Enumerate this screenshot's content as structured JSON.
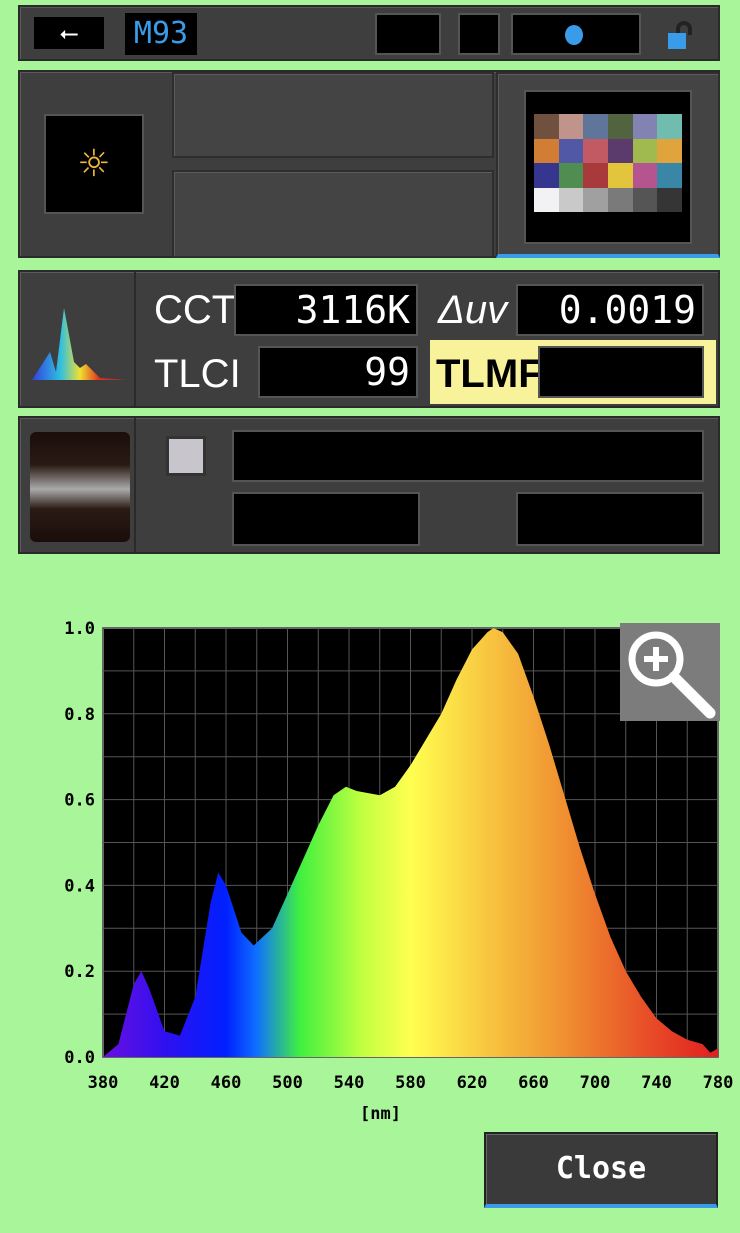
{
  "status_bar": {
    "usb_icon": "usb-icon",
    "memory_label": "M93",
    "indicator_icon": "blue-dot-icon",
    "lock_icon": "unlocked-padlock-icon",
    "accent": "#3a9be8"
  },
  "mode_panel": {
    "light_icon": "sun-icon",
    "chart_icon": "color-checker-icon",
    "color_checker": [
      "#70503f",
      "#c0948a",
      "#5f7599",
      "#51633f",
      "#8283b3",
      "#70bcae",
      "#d27d35",
      "#5159a6",
      "#c15a62",
      "#5a3b6b",
      "#a1ba50",
      "#e1a33c",
      "#37368f",
      "#4f8d50",
      "#a83a3c",
      "#e3c43d",
      "#b5558f",
      "#3a86a6",
      "#f2f2f5",
      "#c9c9c9",
      "#a0a0a0",
      "#7a7a7a",
      "#555555",
      "#353535"
    ]
  },
  "measure": {
    "spectrum_icon": "spectrum-icon",
    "cct_label": "CCT",
    "cct_value": "3116K",
    "duv_label": "Δuv",
    "duv_value": "0.0019",
    "tlci_label": "TLCI",
    "tlci_value": "99",
    "tlmf_label": "TLMF",
    "tlmf_value": "",
    "tlmf_bg": "#f8f39a"
  },
  "filter_panel": {
    "dial_icon": "dial-icon"
  },
  "chart_data": {
    "type": "area",
    "xlabel": "[nm]",
    "ylabel": "",
    "xlim": [
      380,
      780
    ],
    "ylim": [
      0,
      1.0
    ],
    "grid": true,
    "xticks": [
      380,
      420,
      460,
      500,
      540,
      580,
      620,
      660,
      700,
      740,
      780
    ],
    "yticks": [
      "0.0",
      "0.2",
      "0.4",
      "0.6",
      "0.8",
      "1.0"
    ],
    "x": [
      380,
      390,
      400,
      405,
      410,
      420,
      430,
      440,
      450,
      455,
      460,
      470,
      478,
      490,
      500,
      510,
      520,
      530,
      538,
      545,
      560,
      570,
      580,
      590,
      600,
      610,
      620,
      630,
      634,
      640,
      650,
      660,
      670,
      680,
      690,
      700,
      710,
      720,
      730,
      740,
      750,
      760,
      770,
      775,
      780
    ],
    "y": [
      0,
      0.03,
      0.17,
      0.2,
      0.16,
      0.06,
      0.05,
      0.14,
      0.36,
      0.43,
      0.4,
      0.29,
      0.26,
      0.3,
      0.38,
      0.46,
      0.54,
      0.61,
      0.63,
      0.62,
      0.61,
      0.63,
      0.68,
      0.74,
      0.8,
      0.88,
      0.95,
      0.99,
      1.0,
      0.99,
      0.94,
      0.84,
      0.73,
      0.61,
      0.49,
      0.38,
      0.28,
      0.2,
      0.14,
      0.09,
      0.06,
      0.04,
      0.03,
      0.01,
      0.02
    ]
  },
  "zoom_icon": "zoom-in-icon",
  "close_label": "Close"
}
